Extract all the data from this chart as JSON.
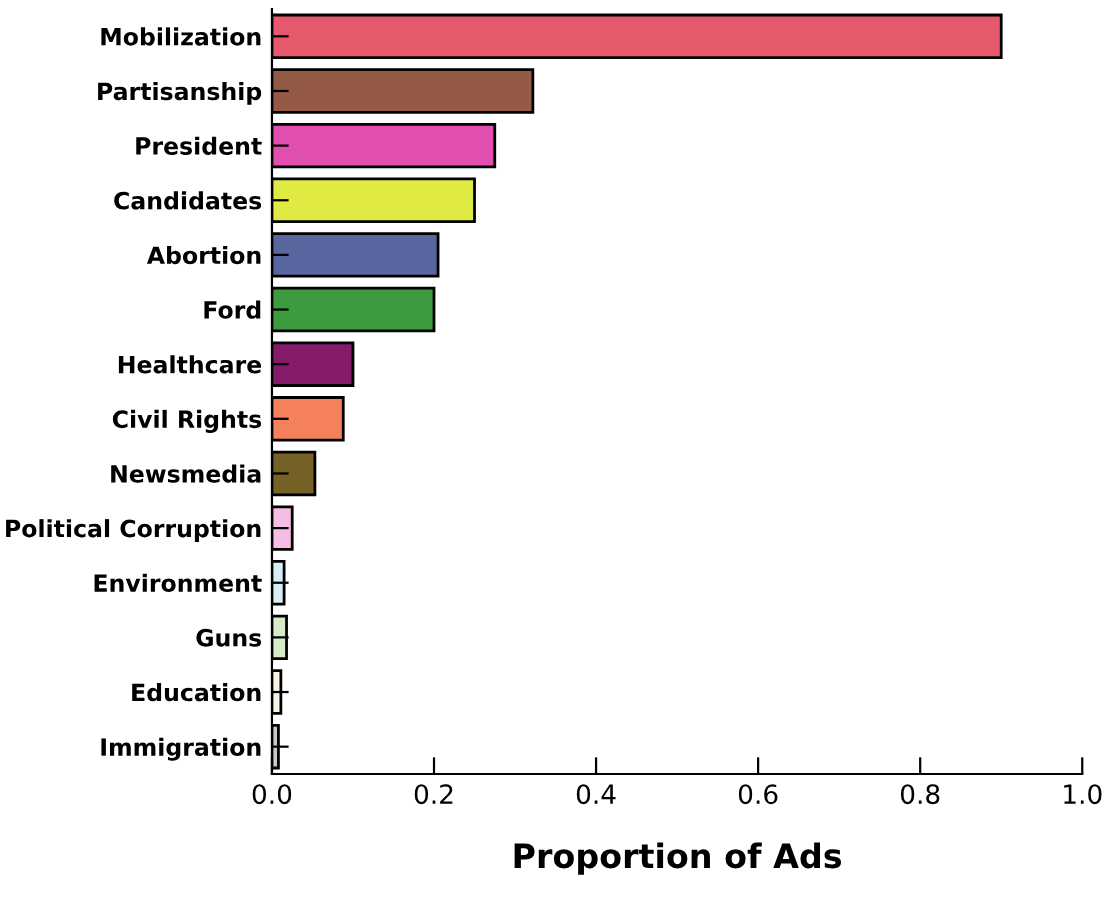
{
  "chart_data": {
    "type": "bar",
    "orientation": "horizontal",
    "xlabel": "Proportion of Ads",
    "categories": [
      "Mobilization",
      "Partisanship",
      "President",
      "Candidates",
      "Abortion",
      "Ford",
      "Healthcare",
      "Civil Rights",
      "Newsmedia",
      "Political Corruption",
      "Environment",
      "Guns",
      "Education",
      "Immigration"
    ],
    "values": [
      0.9,
      0.322,
      0.275,
      0.25,
      0.205,
      0.2,
      0.1,
      0.088,
      0.053,
      0.025,
      0.015,
      0.018,
      0.011,
      0.008
    ],
    "colors": [
      "#e6586b",
      "#955a46",
      "#e04fb0",
      "#dfea43",
      "#5966a0",
      "#3d9b3f",
      "#861a6b",
      "#f4805c",
      "#766227",
      "#f5bde3",
      "#d8eef5",
      "#d5ecc6",
      "#f8f4e4",
      "#c9c9c9"
    ],
    "xlim": [
      0,
      1.0
    ],
    "xticks": [
      {
        "value": 0,
        "label": "0.0"
      },
      0.2,
      0.4,
      0.6,
      0.8,
      {
        "value": 1.0,
        "label": "1.0"
      }
    ],
    "grid": false
  }
}
